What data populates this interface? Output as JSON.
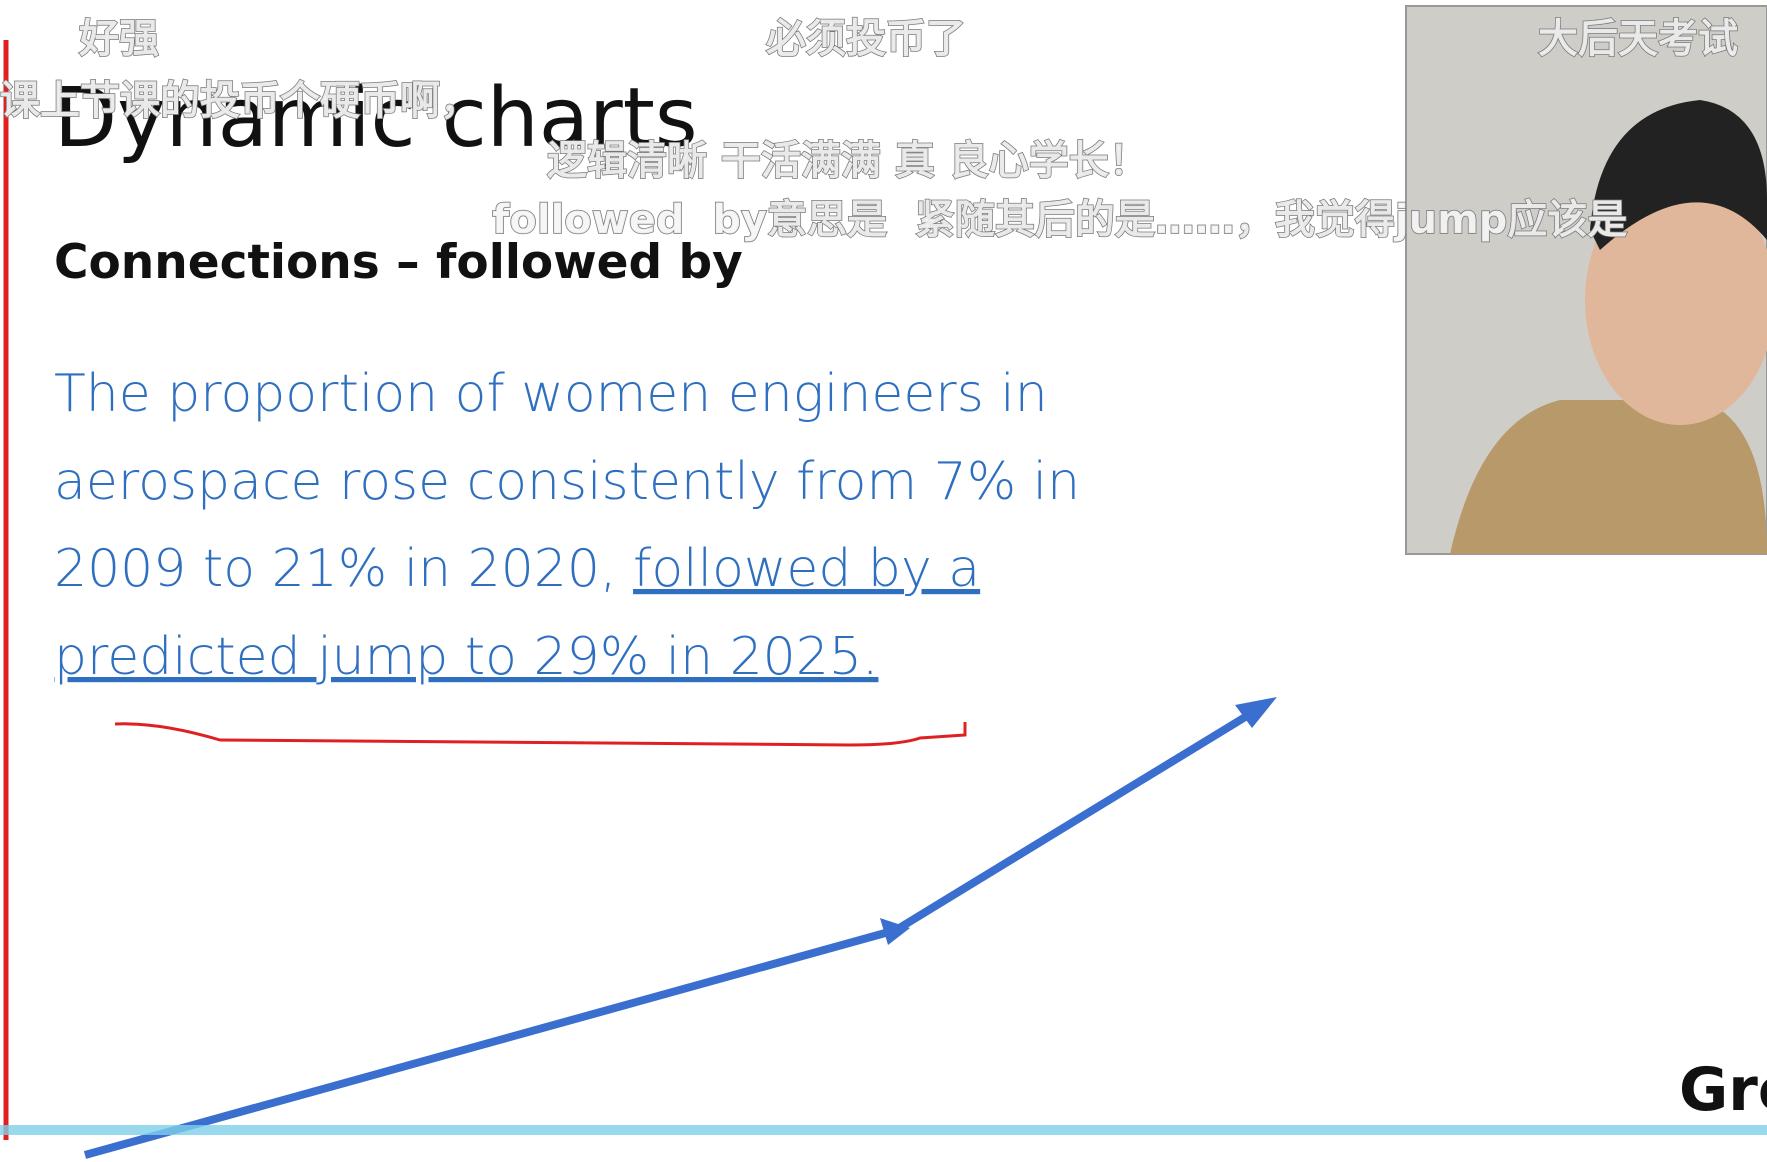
{
  "slide": {
    "title": "Dynamic charts",
    "subtitle": "Connections – followed by",
    "body": {
      "line1": "The proportion of women engineers in",
      "line2": "aerospace rose consistently from 7% in",
      "line3a": "2009 to 21% in 2020, ",
      "line3b": "followed by a",
      "line4": "predicted jump to 29% in 2025."
    },
    "corner": "Gro"
  },
  "danmaku": [
    "好强",
    "必须投币了",
    "大后天考试",
    "课上节课的投币个硬币啊，",
    "逻辑清晰  干活满满  真  良心学长！",
    "followed  by意思是  紧随其后的是……，我觉得jump应该是"
  ]
}
